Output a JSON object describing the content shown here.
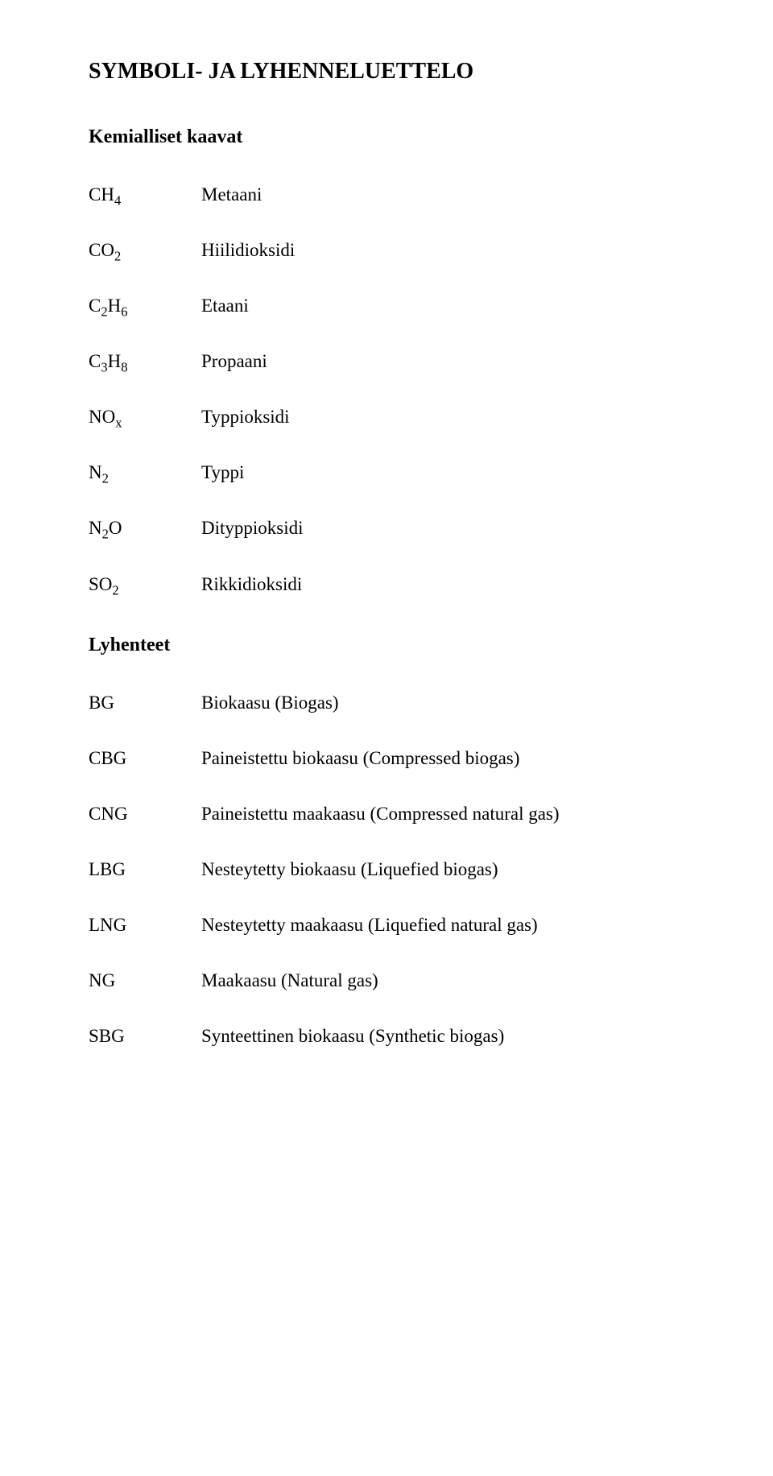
{
  "title": "SYMBOLI- JA LYHENNELUETTELO",
  "sections": {
    "formulas": {
      "title": "Kemialliset kaavat",
      "rows": [
        {
          "base": "CH",
          "sub": "4",
          "desc": "Metaani"
        },
        {
          "base": "CO",
          "sub": "2",
          "desc": "Hiilidioksidi"
        },
        {
          "base": "C",
          "mid": "2",
          "base2": "H",
          "sub": "6",
          "desc": "Etaani"
        },
        {
          "base": "C",
          "mid": "3",
          "base2": "H",
          "sub": "8",
          "desc": "Propaani"
        },
        {
          "base": "NO",
          "sub": "x",
          "desc": "Typpioksidi"
        },
        {
          "base": "N",
          "sub": "2",
          "desc": "Typpi"
        },
        {
          "base": "N",
          "mid": "2",
          "base2": "O",
          "sub": "",
          "desc": "Dityppioksidi"
        },
        {
          "base": "SO",
          "sub": "2",
          "desc": "Rikkidioksidi"
        }
      ]
    },
    "abbrev": {
      "title": "Lyhenteet",
      "rows": [
        {
          "sym": "BG",
          "desc": "Biokaasu (Biogas)"
        },
        {
          "sym": "CBG",
          "desc": "Paineistettu biokaasu (Compressed biogas)"
        },
        {
          "sym": "CNG",
          "desc": "Paineistettu maakaasu (Compressed natural gas)"
        },
        {
          "sym": "LBG",
          "desc": "Nesteytetty biokaasu (Liquefied biogas)"
        },
        {
          "sym": "LNG",
          "desc": "Nesteytetty maakaasu (Liquefied natural gas)"
        },
        {
          "sym": "NG",
          "desc": "Maakaasu (Natural gas)"
        },
        {
          "sym": "SBG",
          "desc": "Synteettinen biokaasu (Synthetic biogas)"
        }
      ]
    }
  }
}
